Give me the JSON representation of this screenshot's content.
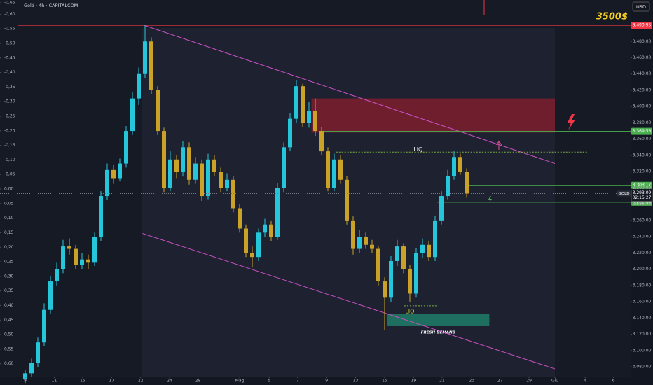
{
  "chart_data": {
    "type": "candlestick",
    "title": "Gold · 4h · CAPITALCOM",
    "currency": "USD",
    "annotation": "3500$",
    "xlim": [
      -4,
      96
    ],
    "xticks": [
      {
        "value": 0,
        "label": "9"
      },
      {
        "value": 4.6,
        "label": "11"
      },
      {
        "value": 9.1,
        "label": "15"
      },
      {
        "value": 13.7,
        "label": "17"
      },
      {
        "value": 18.3,
        "label": "22"
      },
      {
        "value": 22.9,
        "label": "24"
      },
      {
        "value": 27.4,
        "label": "28"
      },
      {
        "value": 34,
        "label": "Mag"
      },
      {
        "value": 38.7,
        "label": "5"
      },
      {
        "value": 43.2,
        "label": "7"
      },
      {
        "value": 47.8,
        "label": "9"
      },
      {
        "value": 52.4,
        "label": "13"
      },
      {
        "value": 57,
        "label": "15"
      },
      {
        "value": 61.6,
        "label": "19"
      },
      {
        "value": 66.1,
        "label": "21"
      },
      {
        "value": 70.8,
        "label": "23"
      },
      {
        "value": 75.3,
        "label": "27"
      },
      {
        "value": 79.9,
        "label": "29"
      },
      {
        "value": 84,
        "label": "Giu"
      },
      {
        "value": 88.8,
        "label": "4"
      },
      {
        "value": 93.3,
        "label": "6"
      }
    ],
    "ylim": [
      3068,
      3531
    ],
    "yticks": [
      {
        "value": 3080,
        "label": "3.080,00"
      },
      {
        "value": 3100,
        "label": "3.100,00"
      },
      {
        "value": 3120,
        "label": "3.120,00"
      },
      {
        "value": 3140,
        "label": "3.140,00"
      },
      {
        "value": 3160,
        "label": "3.160,00"
      },
      {
        "value": 3180,
        "label": "3.180,00"
      },
      {
        "value": 3200,
        "label": "3.200,00"
      },
      {
        "value": 3220,
        "label": "3.220,00"
      },
      {
        "value": 3240,
        "label": "3.240,00"
      },
      {
        "value": 3260,
        "label": "3.260,00"
      },
      {
        "value": 3280,
        "label": "3.280,00"
      },
      {
        "value": 3300,
        "label": "3.300,00"
      },
      {
        "value": 3320,
        "label": "3.320,00"
      },
      {
        "value": 3340,
        "label": "3.340,00"
      },
      {
        "value": 3360,
        "label": "3.360,00"
      },
      {
        "value": 3380,
        "label": "3.380,00"
      },
      {
        "value": 3400,
        "label": "3.400,00"
      },
      {
        "value": 3420,
        "label": "3.420,00"
      },
      {
        "value": 3440,
        "label": "3.440,00"
      },
      {
        "value": 3460,
        "label": "3.460,00"
      },
      {
        "value": 3480,
        "label": "3.480,00"
      }
    ],
    "y2lim": [
      -0.649,
      0.644
    ],
    "y2ticks": [
      {
        "value": -0.65,
        "label": "-0,65"
      },
      {
        "value": -0.6,
        "label": "-0,60"
      },
      {
        "value": -0.55,
        "label": "-0,55"
      },
      {
        "value": -0.5,
        "label": "-0,50"
      },
      {
        "value": -0.45,
        "label": "-0,45"
      },
      {
        "value": -0.4,
        "label": "-0,40"
      },
      {
        "value": -0.35,
        "label": "-0,35"
      },
      {
        "value": -0.3,
        "label": "-0,30"
      },
      {
        "value": -0.25,
        "label": "-0,25"
      },
      {
        "value": -0.2,
        "label": "-0,20"
      },
      {
        "value": -0.15,
        "label": "-0,15"
      },
      {
        "value": -0.1,
        "label": "-0,10"
      },
      {
        "value": -0.05,
        "label": "-0,05"
      },
      {
        "value": 0,
        "label": "0,00"
      },
      {
        "value": 0.05,
        "label": "0,05"
      },
      {
        "value": 0.1,
        "label": "0,10"
      },
      {
        "value": 0.15,
        "label": "0,15"
      },
      {
        "value": 0.2,
        "label": "0,20"
      },
      {
        "value": 0.25,
        "label": "0,25"
      },
      {
        "value": 0.3,
        "label": "0,30"
      },
      {
        "value": 0.35,
        "label": "0,35"
      },
      {
        "value": 0.4,
        "label": "0,40"
      },
      {
        "value": 0.45,
        "label": "0,45"
      },
      {
        "value": 0.5,
        "label": "0,50"
      },
      {
        "value": 0.55,
        "label": "0,55"
      },
      {
        "value": 0.6,
        "label": "0,60"
      }
    ],
    "series": [
      {
        "name": "GOLD",
        "up_color": "#26c6da",
        "down_color": "#c9a227",
        "open": [
          3065,
          3072,
          3085,
          3110,
          3150,
          3185,
          3200,
          3228,
          3225,
          3205,
          3212,
          3208,
          3240,
          3290,
          3322,
          3312,
          3330,
          3370,
          3410,
          3440,
          3480,
          3420,
          3370,
          3300,
          3335,
          3320,
          3350,
          3310,
          3330,
          3290,
          3335,
          3320,
          3300,
          3310,
          3275,
          3250,
          3220,
          3215,
          3245,
          3255,
          3240,
          3300,
          3350,
          3385,
          3425,
          3380,
          3395,
          3370,
          3345,
          3300,
          3335,
          3310,
          3260,
          3225,
          3240,
          3230,
          3225,
          3185,
          3165,
          3210,
          3228,
          3200,
          3170,
          3220,
          3230,
          3215,
          3260,
          3290,
          3315,
          3338,
          3320
        ],
        "high": [
          3076,
          3090,
          3116,
          3158,
          3192,
          3208,
          3236,
          3238,
          3230,
          3220,
          3218,
          3245,
          3296,
          3330,
          3328,
          3336,
          3376,
          3418,
          3448,
          3500,
          3485,
          3425,
          3374,
          3345,
          3340,
          3358,
          3356,
          3338,
          3335,
          3342,
          3340,
          3325,
          3318,
          3315,
          3280,
          3255,
          3228,
          3250,
          3262,
          3260,
          3306,
          3356,
          3392,
          3432,
          3428,
          3406,
          3410,
          3375,
          3350,
          3342,
          3340,
          3315,
          3265,
          3248,
          3245,
          3236,
          3228,
          3190,
          3216,
          3236,
          3232,
          3205,
          3226,
          3238,
          3235,
          3266,
          3296,
          3322,
          3345,
          3342,
          3324
        ],
        "low": [
          3060,
          3068,
          3080,
          3105,
          3145,
          3180,
          3195,
          3218,
          3200,
          3200,
          3200,
          3204,
          3235,
          3285,
          3305,
          3308,
          3325,
          3365,
          3402,
          3435,
          3415,
          3365,
          3295,
          3296,
          3312,
          3314,
          3304,
          3305,
          3284,
          3286,
          3314,
          3295,
          3296,
          3270,
          3245,
          3215,
          3202,
          3210,
          3240,
          3235,
          3236,
          3295,
          3345,
          3380,
          3375,
          3374,
          3364,
          3340,
          3296,
          3296,
          3305,
          3255,
          3218,
          3220,
          3225,
          3220,
          3180,
          3125,
          3160,
          3204,
          3195,
          3160,
          3165,
          3214,
          3210,
          3210,
          3255,
          3286,
          3310,
          3316,
          3288
        ],
        "close": [
          3072,
          3085,
          3110,
          3150,
          3185,
          3200,
          3228,
          3225,
          3205,
          3212,
          3208,
          3240,
          3290,
          3322,
          3312,
          3330,
          3370,
          3410,
          3440,
          3480,
          3420,
          3370,
          3300,
          3335,
          3320,
          3350,
          3310,
          3330,
          3290,
          3335,
          3320,
          3300,
          3310,
          3275,
          3250,
          3220,
          3215,
          3245,
          3255,
          3240,
          3300,
          3350,
          3385,
          3425,
          3380,
          3395,
          3370,
          3345,
          3300,
          3335,
          3310,
          3260,
          3225,
          3240,
          3230,
          3225,
          3185,
          3165,
          3210,
          3228,
          3200,
          3170,
          3220,
          3230,
          3215,
          3260,
          3290,
          3315,
          3338,
          3320,
          3293
        ]
      }
    ],
    "levels": [
      {
        "value": 3499.95,
        "label": "3.499,95",
        "color": "#f23645",
        "x": -1.2
      },
      {
        "value": 3369.56,
        "label": "3.369,56",
        "color": "#4caf50",
        "x": 46.6
      },
      {
        "value": 3303.17,
        "label": "3.303,17",
        "color": "#4caf50",
        "x": 70.1
      },
      {
        "value": 3282.44,
        "label": "3.282,44",
        "color": "#4caf50",
        "x": 65.4
      }
    ],
    "last_price": {
      "value": 3293.09,
      "label": "3.293,09",
      "countdown": "02:15:27"
    },
    "zones": [
      {
        "x": [
          45.4,
          84
        ],
        "y": [
          3368,
          3410
        ],
        "color": "#8b1e2e"
      },
      {
        "x": [
          57.4,
          73.6
        ],
        "y": [
          3130,
          3145
        ],
        "color": "#1f8a70",
        "label": "FRESH DEMAND"
      }
    ],
    "liquidity": [
      {
        "label": "LIQ",
        "value": 3344,
        "x": [
          49.3,
          89.1
        ]
      },
      {
        "label": "LIQ",
        "value": 3155,
        "x": [
          60.1,
          65.4
        ]
      }
    ],
    "trendlines": [
      {
        "x": [
          18.8,
          84
        ],
        "y": [
          3500,
          3330
        ],
        "color": "#c850c0"
      },
      {
        "x": [
          18.6,
          84
        ],
        "y": [
          3244,
          3077.4
        ],
        "color": "#c850c0"
      }
    ]
  }
}
